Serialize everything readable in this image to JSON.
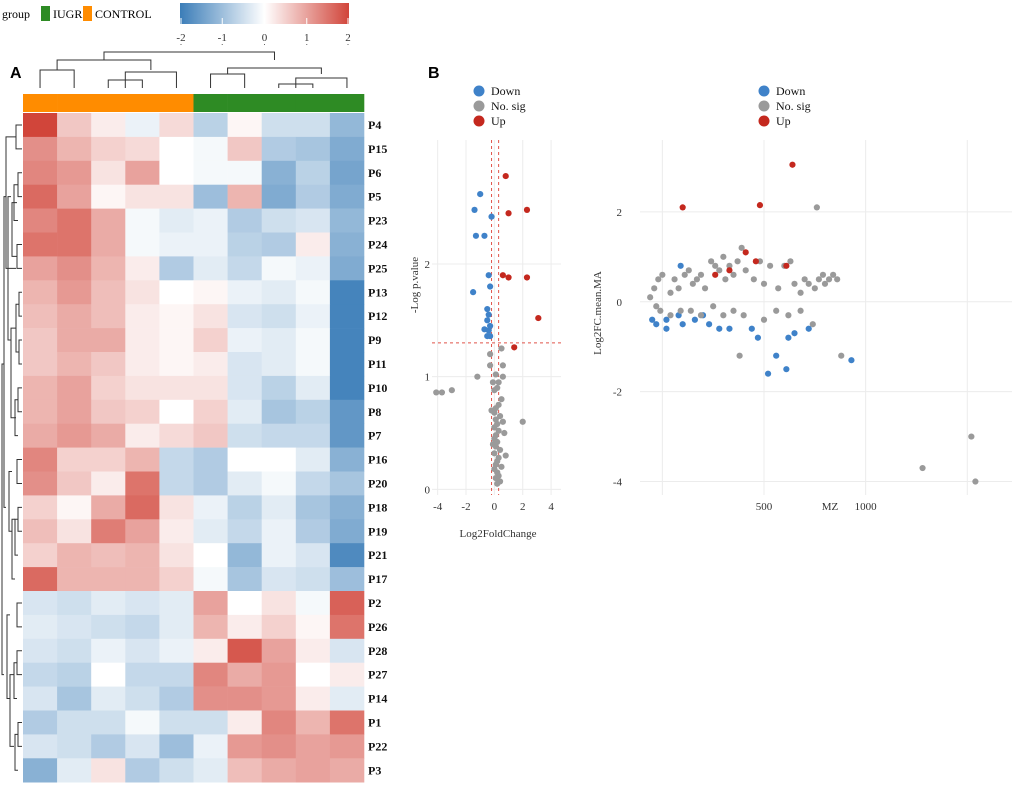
{
  "legend": {
    "group_title": "group",
    "group_items": [
      {
        "label": "IUGR",
        "color": "#2e8b24"
      },
      {
        "label": "CONTROL",
        "color": "#ff8c00"
      }
    ],
    "colorbar_ticks": [
      "-2",
      "-1",
      "0",
      "1",
      "2"
    ],
    "colorbar_low": "#3b7db8",
    "colorbar_mid": "#ffffff",
    "colorbar_high": "#d1453a"
  },
  "panels": {
    "a": "A",
    "b": "B"
  },
  "chart_data": [
    {
      "type": "heatmap",
      "title": "",
      "column_groups": [
        "CONTROL",
        "CONTROL",
        "CONTROL",
        "CONTROL",
        "CONTROL",
        "IUGR",
        "IUGR",
        "IUGR",
        "IUGR",
        "IUGR"
      ],
      "rows": [
        "P4",
        "P15",
        "P6",
        "P5",
        "P23",
        "P24",
        "P25",
        "P13",
        "P12",
        "P9",
        "P11",
        "P10",
        "P8",
        "P7",
        "P16",
        "P20",
        "P18",
        "P19",
        "P21",
        "P17",
        "P2",
        "P26",
        "P28",
        "P27",
        "P14",
        "P1",
        "P22",
        "P3"
      ],
      "values": [
        [
          2.0,
          0.6,
          0.2,
          -0.2,
          0.4,
          -0.7,
          0.1,
          -0.5,
          -0.5,
          -1.1
        ],
        [
          1.2,
          0.8,
          0.5,
          0.4,
          0.0,
          -0.1,
          0.6,
          -0.8,
          -0.9,
          -1.3
        ],
        [
          1.3,
          1.1,
          0.3,
          1.0,
          0.0,
          -0.1,
          -0.1,
          -1.2,
          -0.7,
          -1.4
        ],
        [
          1.6,
          1.0,
          0.1,
          0.3,
          0.3,
          -1.0,
          0.8,
          -1.3,
          -0.8,
          -1.3
        ],
        [
          1.3,
          1.5,
          0.9,
          -0.1,
          -0.3,
          -0.2,
          -0.8,
          -0.5,
          -0.4,
          -1.1
        ],
        [
          1.5,
          1.5,
          0.9,
          -0.1,
          -0.2,
          -0.2,
          -0.7,
          -0.8,
          0.2,
          -1.2
        ],
        [
          1.0,
          1.2,
          0.8,
          0.2,
          -0.8,
          -0.3,
          -0.6,
          -0.1,
          -0.2,
          -1.3
        ],
        [
          0.8,
          1.1,
          0.7,
          0.3,
          0.0,
          0.1,
          -0.2,
          -0.3,
          -0.1,
          -1.9
        ],
        [
          0.7,
          0.9,
          0.7,
          0.2,
          0.1,
          0.3,
          -0.4,
          -0.5,
          -0.2,
          -1.9
        ],
        [
          0.6,
          0.9,
          0.9,
          0.2,
          0.1,
          0.5,
          -0.2,
          -0.3,
          -0.1,
          -1.9
        ],
        [
          0.6,
          0.8,
          0.6,
          0.2,
          0.1,
          0.2,
          -0.4,
          -0.3,
          -0.1,
          -1.9
        ],
        [
          0.8,
          1.0,
          0.5,
          0.3,
          0.3,
          0.3,
          -0.4,
          -0.7,
          -0.3,
          -1.9
        ],
        [
          0.8,
          1.0,
          0.6,
          0.5,
          0.0,
          0.5,
          -0.3,
          -0.9,
          -0.7,
          -1.6
        ],
        [
          0.9,
          1.1,
          0.9,
          0.2,
          0.4,
          0.6,
          -0.5,
          -0.6,
          -0.6,
          -1.6
        ],
        [
          1.3,
          0.5,
          0.5,
          0.8,
          -0.6,
          -0.8,
          0.0,
          0.0,
          -0.3,
          -1.2
        ],
        [
          1.2,
          0.6,
          0.2,
          1.5,
          -0.6,
          -0.8,
          -0.3,
          -0.1,
          -0.6,
          -0.9
        ],
        [
          0.5,
          0.1,
          0.9,
          1.6,
          0.3,
          -0.2,
          -0.7,
          -0.3,
          -0.9,
          -1.2
        ],
        [
          0.7,
          0.3,
          1.4,
          1.0,
          0.2,
          -0.3,
          -0.6,
          -0.2,
          -0.8,
          -1.3
        ],
        [
          0.5,
          0.8,
          0.7,
          0.8,
          0.3,
          0.0,
          -1.1,
          -0.2,
          -0.4,
          -1.8
        ],
        [
          1.6,
          0.8,
          0.8,
          0.8,
          0.5,
          -0.1,
          -0.9,
          -0.4,
          -0.5,
          -1.0
        ],
        [
          -0.4,
          -0.5,
          -0.3,
          -0.4,
          -0.3,
          1.0,
          0.0,
          0.3,
          -0.1,
          1.7
        ],
        [
          -0.3,
          -0.4,
          -0.5,
          -0.6,
          -0.3,
          0.8,
          0.2,
          0.5,
          0.1,
          1.5
        ],
        [
          -0.4,
          -0.5,
          -0.2,
          -0.4,
          -0.2,
          0.2,
          1.8,
          1.0,
          0.2,
          -0.4
        ],
        [
          -0.6,
          -0.7,
          0.0,
          -0.6,
          -0.6,
          1.3,
          0.9,
          1.1,
          0.0,
          0.2
        ],
        [
          -0.4,
          -0.9,
          -0.3,
          -0.5,
          -0.8,
          1.2,
          1.2,
          1.1,
          0.2,
          -0.3
        ],
        [
          -0.8,
          -0.5,
          -0.5,
          -0.1,
          -0.5,
          -0.5,
          0.2,
          1.3,
          0.8,
          1.5
        ],
        [
          -0.4,
          -0.5,
          -0.8,
          -0.4,
          -1.0,
          -0.2,
          1.1,
          1.2,
          1.0,
          1.1
        ],
        [
          -1.2,
          -0.3,
          0.3,
          -0.8,
          -0.5,
          -0.3,
          0.7,
          0.9,
          1.0,
          0.9
        ]
      ],
      "color_range": [
        -2,
        2
      ]
    },
    {
      "type": "scatter",
      "title": "",
      "xlabel": "Log2FoldChange",
      "ylabel": "-Log p.value",
      "xlim": [
        -4.4,
        4.7
      ],
      "ylim": [
        -0.05,
        3.1
      ],
      "xticks": [
        "-4",
        "-2",
        "0",
        "2",
        "4"
      ],
      "yticks": [
        "0",
        "1",
        "2"
      ],
      "thresholds": {
        "p_line_y": 1.3,
        "fc_lines_x": [
          -0.2,
          0.3
        ]
      },
      "legend": [
        {
          "label": "Down",
          "color": "#3f82c9"
        },
        {
          "label": "No. sig",
          "color": "#9a9a9a"
        },
        {
          "label": "Up",
          "color": "#c4281e"
        }
      ],
      "series": [
        {
          "name": "Down",
          "color": "#3f82c9",
          "points": [
            [
              -1.0,
              2.62
            ],
            [
              -1.4,
              2.48
            ],
            [
              -0.7,
              2.25
            ],
            [
              -1.3,
              2.25
            ],
            [
              -0.2,
              2.42
            ],
            [
              -1.5,
              1.75
            ],
            [
              -0.4,
              1.9
            ],
            [
              -0.3,
              1.8
            ],
            [
              -0.5,
              1.6
            ],
            [
              -0.4,
              1.55
            ],
            [
              -0.5,
              1.5
            ],
            [
              -0.3,
              1.45
            ],
            [
              -0.7,
              1.42
            ],
            [
              -0.5,
              1.36
            ],
            [
              -0.3,
              1.36
            ],
            [
              -0.4,
              1.41
            ]
          ]
        },
        {
          "name": "No. sig",
          "color": "#9a9a9a",
          "points": [
            [
              -4.1,
              0.86
            ],
            [
              -3.7,
              0.86
            ],
            [
              -3.0,
              0.88
            ],
            [
              -1.2,
              1.0
            ],
            [
              -0.3,
              1.2
            ],
            [
              0.5,
              1.25
            ],
            [
              0.6,
              1.1
            ],
            [
              0.1,
              1.02
            ],
            [
              0.3,
              0.95
            ],
            [
              0.2,
              0.9
            ],
            [
              0.0,
              0.88
            ],
            [
              0.5,
              0.8
            ],
            [
              0.3,
              0.75
            ],
            [
              0.1,
              0.72
            ],
            [
              0.0,
              0.68
            ],
            [
              0.4,
              0.65
            ],
            [
              0.1,
              0.62
            ],
            [
              0.2,
              0.58
            ],
            [
              0.0,
              0.55
            ],
            [
              0.3,
              0.52
            ],
            [
              0.1,
              0.48
            ],
            [
              0.0,
              0.45
            ],
            [
              0.2,
              0.42
            ],
            [
              0.1,
              0.38
            ],
            [
              0.4,
              0.35
            ],
            [
              0.0,
              0.32
            ],
            [
              0.3,
              0.28
            ],
            [
              0.2,
              0.25
            ],
            [
              0.1,
              0.22
            ],
            [
              0.5,
              0.2
            ],
            [
              0.0,
              0.18
            ],
            [
              0.2,
              0.15
            ],
            [
              0.3,
              0.12
            ],
            [
              0.1,
              0.1
            ],
            [
              0.4,
              0.07
            ],
            [
              0.2,
              0.05
            ],
            [
              -0.1,
              0.95
            ],
            [
              -0.2,
              0.7
            ],
            [
              -0.1,
              0.4
            ],
            [
              0.6,
              1.0
            ],
            [
              0.7,
              0.5
            ],
            [
              -0.3,
              1.1
            ],
            [
              0.8,
              0.3
            ],
            [
              0.6,
              0.6
            ],
            [
              2.0,
              0.6
            ]
          ]
        },
        {
          "name": "Up",
          "color": "#c4281e",
          "points": [
            [
              0.8,
              2.78
            ],
            [
              2.3,
              2.48
            ],
            [
              1.0,
              2.45
            ],
            [
              0.6,
              1.9
            ],
            [
              1.0,
              1.88
            ],
            [
              2.3,
              1.88
            ],
            [
              3.1,
              1.52
            ],
            [
              1.4,
              1.26
            ]
          ]
        }
      ]
    },
    {
      "type": "scatter",
      "title": "",
      "xlabel": "MZ",
      "ylabel": "Log2FC.mean.MA",
      "xlim": [
        -110,
        1720
      ],
      "ylim": [
        -4.3,
        3.6
      ],
      "xticks": [
        "500",
        "1000"
      ],
      "yticks": [
        "-4",
        "-2",
        "0",
        "2"
      ],
      "legend": [
        {
          "label": "Down",
          "color": "#3f82c9"
        },
        {
          "label": "No. sig",
          "color": "#9a9a9a"
        },
        {
          "label": "Up",
          "color": "#c4281e"
        }
      ],
      "series": [
        {
          "name": "Down",
          "color": "#3f82c9",
          "points": [
            [
              -50,
              -0.4
            ],
            [
              -30,
              -0.5
            ],
            [
              20,
              -0.4
            ],
            [
              80,
              -0.3
            ],
            [
              100,
              -0.5
            ],
            [
              160,
              -0.4
            ],
            [
              200,
              -0.3
            ],
            [
              230,
              -0.5
            ],
            [
              280,
              -0.6
            ],
            [
              330,
              -0.6
            ],
            [
              440,
              -0.6
            ],
            [
              470,
              -0.8
            ],
            [
              520,
              -1.6
            ],
            [
              560,
              -1.2
            ],
            [
              610,
              -1.5
            ],
            [
              620,
              -0.8
            ],
            [
              650,
              -0.7
            ],
            [
              720,
              -0.6
            ],
            [
              930,
              -1.3
            ],
            [
              90,
              0.8
            ],
            [
              20,
              -0.6
            ]
          ]
        },
        {
          "name": "No. sig",
          "color": "#9a9a9a",
          "points": [
            [
              -40,
              0.3
            ],
            [
              -20,
              0.5
            ],
            [
              0,
              0.6
            ],
            [
              -60,
              0.1
            ],
            [
              -30,
              -0.1
            ],
            [
              40,
              0.2
            ],
            [
              60,
              0.5
            ],
            [
              80,
              0.3
            ],
            [
              110,
              0.6
            ],
            [
              130,
              0.7
            ],
            [
              150,
              0.4
            ],
            [
              170,
              0.5
            ],
            [
              190,
              0.6
            ],
            [
              210,
              0.3
            ],
            [
              240,
              0.9
            ],
            [
              260,
              0.8
            ],
            [
              280,
              0.7
            ],
            [
              300,
              1.0
            ],
            [
              310,
              0.5
            ],
            [
              330,
              0.8
            ],
            [
              350,
              0.6
            ],
            [
              370,
              0.9
            ],
            [
              390,
              1.2
            ],
            [
              410,
              0.7
            ],
            [
              450,
              0.5
            ],
            [
              480,
              0.9
            ],
            [
              500,
              0.4
            ],
            [
              530,
              0.8
            ],
            [
              570,
              0.3
            ],
            [
              600,
              0.8
            ],
            [
              630,
              0.9
            ],
            [
              650,
              0.4
            ],
            [
              680,
              0.2
            ],
            [
              700,
              0.5
            ],
            [
              720,
              0.4
            ],
            [
              750,
              0.3
            ],
            [
              770,
              0.5
            ],
            [
              790,
              0.6
            ],
            [
              800,
              0.4
            ],
            [
              820,
              0.5
            ],
            [
              840,
              0.6
            ],
            [
              860,
              0.5
            ],
            [
              740,
              -0.5
            ],
            [
              680,
              -0.2
            ],
            [
              620,
              -0.3
            ],
            [
              560,
              -0.2
            ],
            [
              500,
              -0.4
            ],
            [
              400,
              -0.3
            ],
            [
              350,
              -0.2
            ],
            [
              300,
              -0.3
            ],
            [
              250,
              -0.1
            ],
            [
              190,
              -0.3
            ],
            [
              140,
              -0.2
            ],
            [
              90,
              -0.2
            ],
            [
              40,
              -0.3
            ],
            [
              -10,
              -0.2
            ],
            [
              380,
              -1.2
            ],
            [
              760,
              2.1
            ],
            [
              880,
              -1.2
            ],
            [
              1280,
              -3.7
            ],
            [
              1520,
              -3.0
            ],
            [
              1540,
              -4.0
            ]
          ]
        },
        {
          "name": "Up",
          "color": "#c4281e",
          "points": [
            [
              100,
              2.1
            ],
            [
              480,
              2.15
            ],
            [
              640,
              3.05
            ],
            [
              260,
              0.6
            ],
            [
              330,
              0.7
            ],
            [
              410,
              1.1
            ],
            [
              610,
              0.8
            ],
            [
              460,
              0.9
            ]
          ]
        }
      ]
    }
  ]
}
